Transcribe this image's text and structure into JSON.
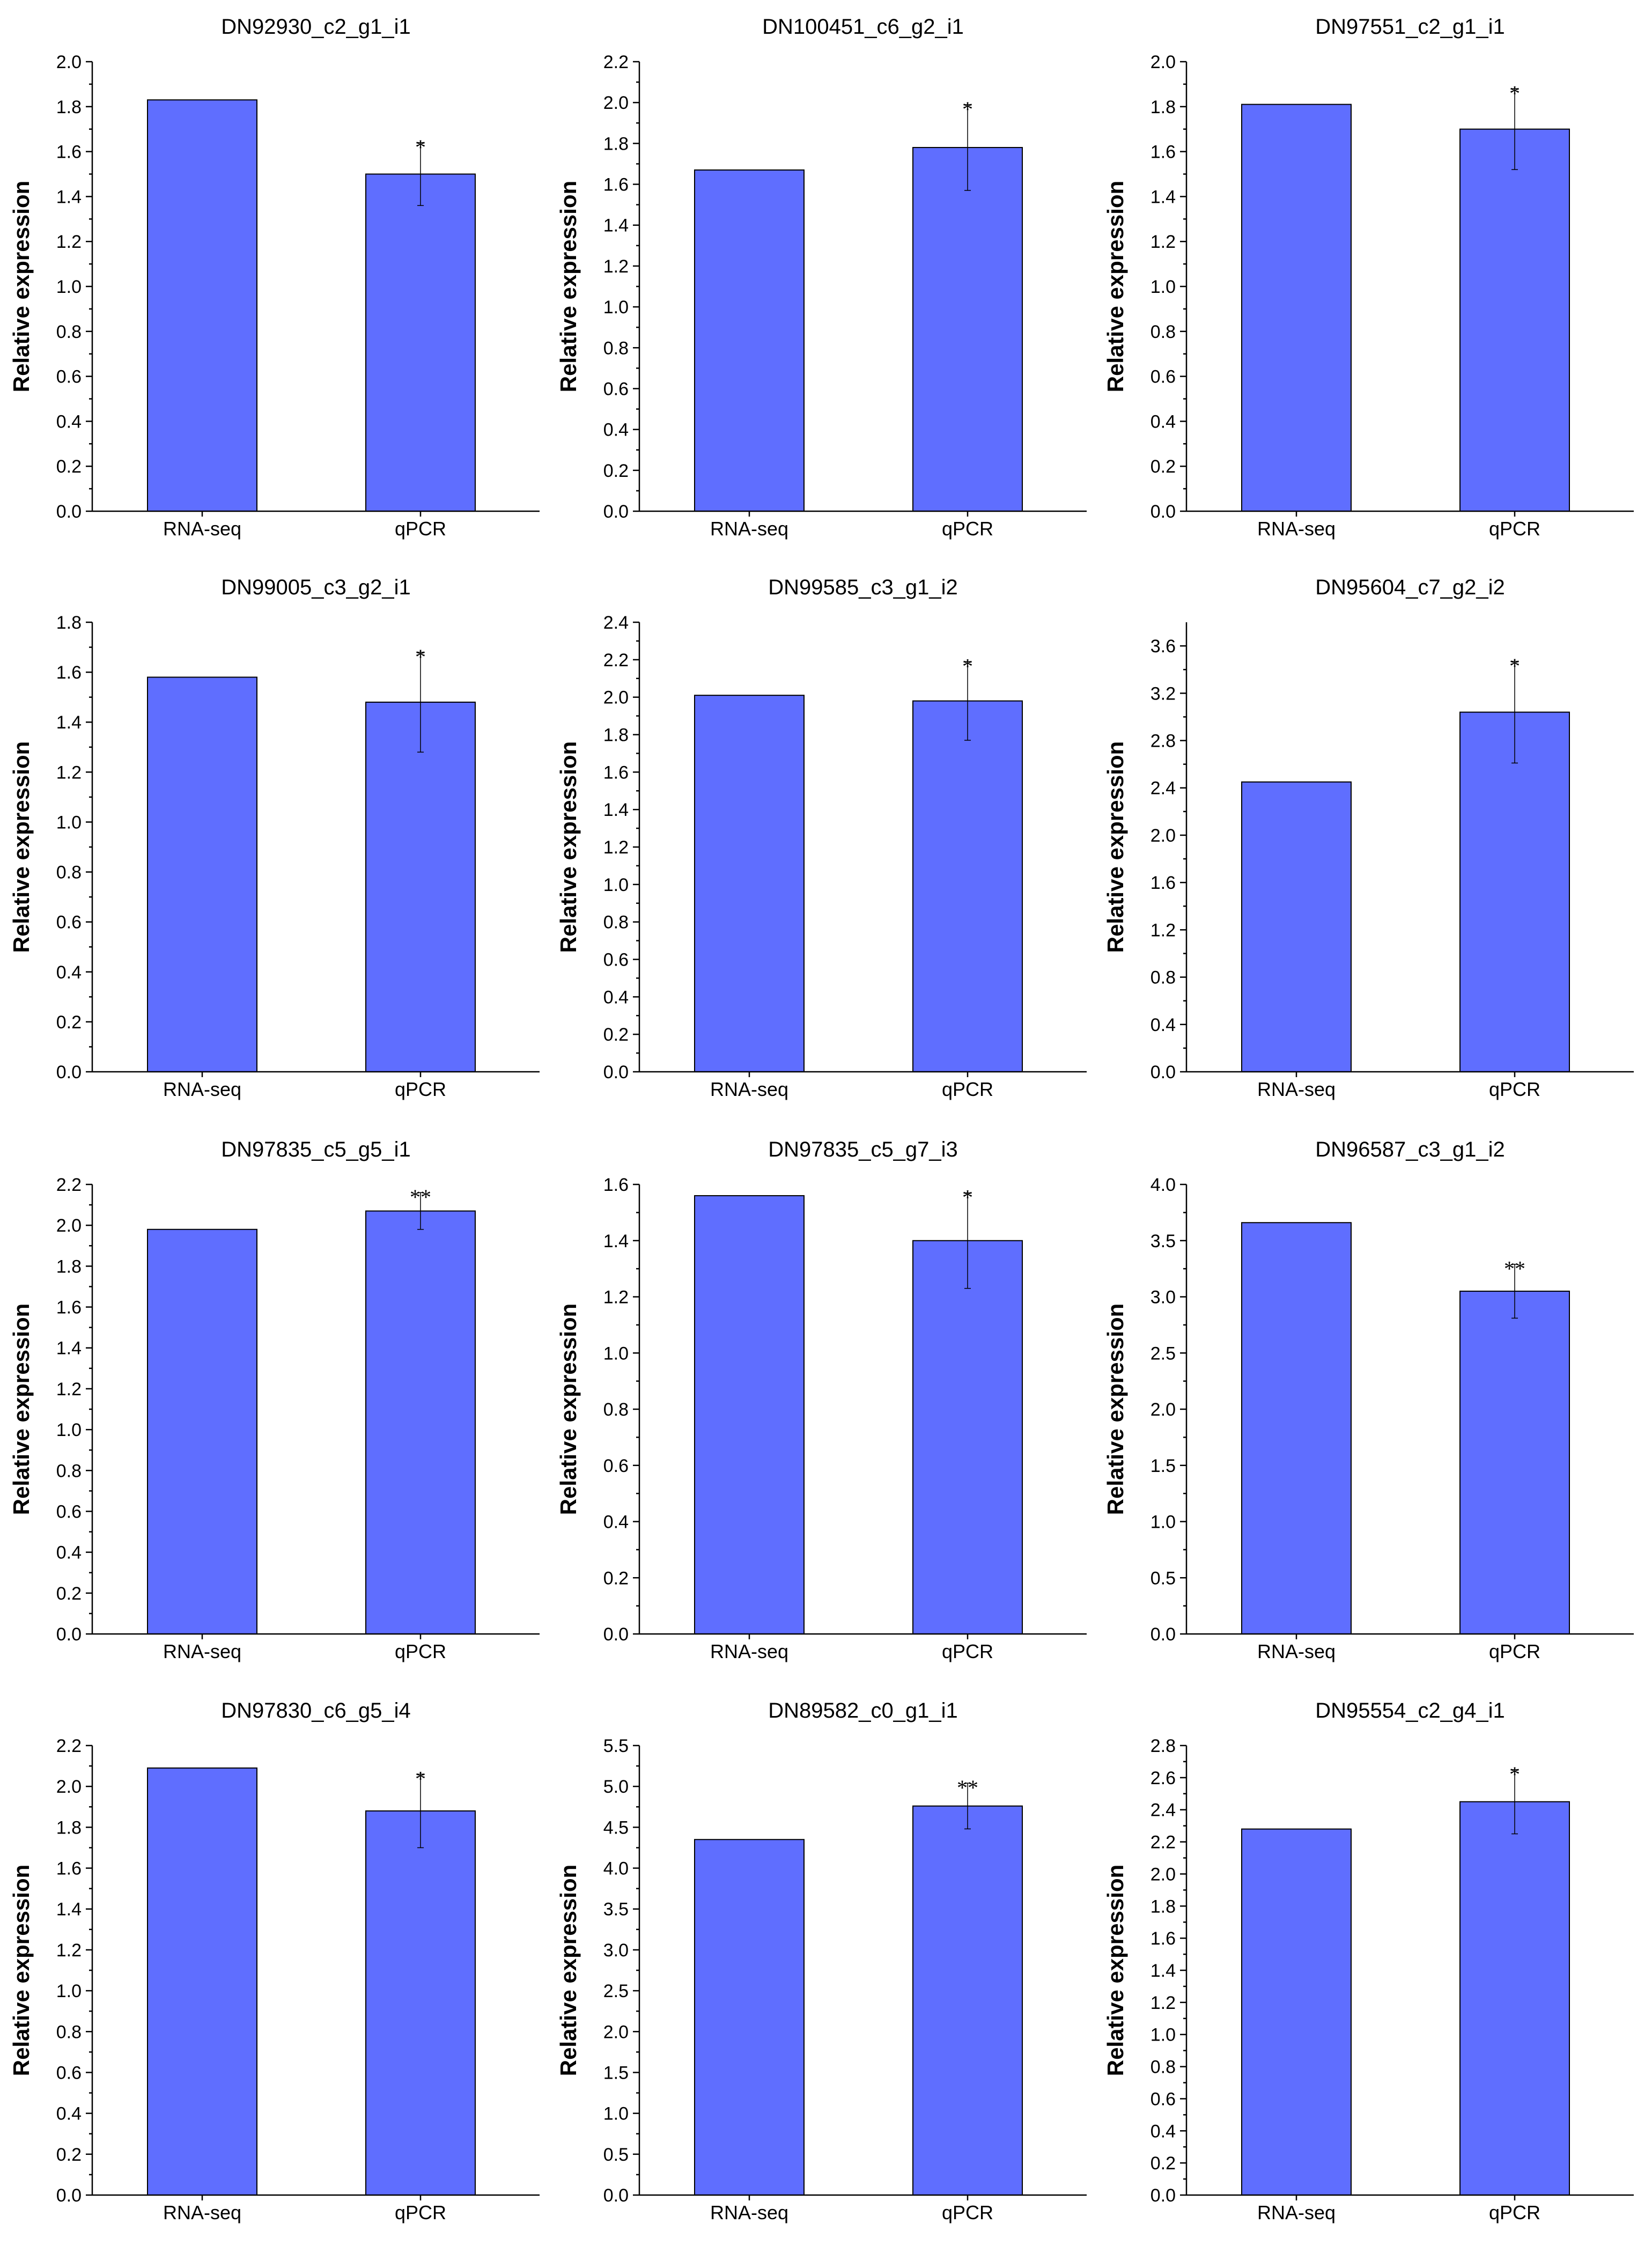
{
  "figure": {
    "y_axis_label": "Relative expression",
    "bar_color": "#5f6eff"
  },
  "chart_data": [
    {
      "type": "bar",
      "title": "DN92930_c2_g1_i1",
      "ylabel": "Relative expression",
      "categories": [
        "RNA-seq",
        "qPCR"
      ],
      "values": [
        1.83,
        1.5
      ],
      "error": [
        null,
        0.14
      ],
      "significance": [
        "",
        "*"
      ],
      "ylim": [
        0,
        2.0
      ],
      "yticks": [
        "0.0",
        "0.2",
        "0.4",
        "0.6",
        "0.8",
        "1.0",
        "1.2",
        "1.4",
        "1.6",
        "1.8",
        "2.0"
      ]
    },
    {
      "type": "bar",
      "title": "DN100451_c6_g2_i1",
      "ylabel": "Relative expression",
      "categories": [
        "RNA-seq",
        "qPCR"
      ],
      "values": [
        1.67,
        1.78
      ],
      "error": [
        null,
        0.21
      ],
      "significance": [
        "",
        "*"
      ],
      "ylim": [
        0,
        2.2
      ],
      "yticks": [
        "0.0",
        "0.2",
        "0.4",
        "0.6",
        "0.8",
        "1.0",
        "1.2",
        "1.4",
        "1.6",
        "1.8",
        "2.0",
        "2.2"
      ]
    },
    {
      "type": "bar",
      "title": "DN97551_c2_g1_i1",
      "ylabel": "Relative expression",
      "categories": [
        "RNA-seq",
        "qPCR"
      ],
      "values": [
        1.81,
        1.7
      ],
      "error": [
        null,
        0.18
      ],
      "significance": [
        "",
        "*"
      ],
      "ylim": [
        0,
        2.0
      ],
      "yticks": [
        "0.0",
        "0.2",
        "0.4",
        "0.6",
        "0.8",
        "1.0",
        "1.2",
        "1.4",
        "1.6",
        "1.8",
        "2.0"
      ]
    },
    {
      "type": "bar",
      "title": "DN99005_c3_g2_i1",
      "ylabel": "Relative expression",
      "categories": [
        "RNA-seq",
        "qPCR"
      ],
      "values": [
        1.58,
        1.48
      ],
      "error": [
        null,
        0.2
      ],
      "significance": [
        "",
        "*"
      ],
      "ylim": [
        0,
        1.8
      ],
      "yticks": [
        "0.0",
        "0.2",
        "0.4",
        "0.6",
        "0.8",
        "1.0",
        "1.2",
        "1.4",
        "1.6",
        "1.8"
      ]
    },
    {
      "type": "bar",
      "title": "DN99585_c3_g1_i2",
      "ylabel": "Relative expression",
      "categories": [
        "RNA-seq",
        "qPCR"
      ],
      "values": [
        2.01,
        1.98
      ],
      "error": [
        null,
        0.21
      ],
      "significance": [
        "",
        "*"
      ],
      "ylim": [
        0,
        2.4
      ],
      "yticks": [
        "0.0",
        "0.2",
        "0.4",
        "0.6",
        "0.8",
        "1.0",
        "1.2",
        "1.4",
        "1.6",
        "1.8",
        "2.0",
        "2.2",
        "2.4"
      ]
    },
    {
      "type": "bar",
      "title": "DN95604_c7_g2_i2",
      "ylabel": "Relative expression",
      "categories": [
        "RNA-seq",
        "qPCR"
      ],
      "values": [
        2.45,
        3.04
      ],
      "error": [
        null,
        0.43
      ],
      "significance": [
        "",
        "*"
      ],
      "ylim": [
        0,
        3.8
      ],
      "yticks": [
        "0.0",
        "0.4",
        "0.8",
        "1.2",
        "1.6",
        "2.0",
        "2.4",
        "2.8",
        "3.2",
        "3.6"
      ]
    },
    {
      "type": "bar",
      "title": "DN97835_c5_g5_i1",
      "ylabel": "Relative expression",
      "categories": [
        "RNA-seq",
        "qPCR"
      ],
      "values": [
        1.98,
        2.07
      ],
      "error": [
        null,
        0.09
      ],
      "significance": [
        "",
        "**"
      ],
      "ylim": [
        0,
        2.2
      ],
      "yticks": [
        "0.0",
        "0.2",
        "0.4",
        "0.6",
        "0.8",
        "1.0",
        "1.2",
        "1.4",
        "1.6",
        "1.8",
        "2.0",
        "2.2"
      ]
    },
    {
      "type": "bar",
      "title": "DN97835_c5_g7_i3",
      "ylabel": "Relative expression",
      "categories": [
        "RNA-seq",
        "qPCR"
      ],
      "values": [
        1.56,
        1.4
      ],
      "error": [
        null,
        0.17
      ],
      "significance": [
        "",
        "*"
      ],
      "ylim": [
        0,
        1.6
      ],
      "yticks": [
        "0.0",
        "0.2",
        "0.4",
        "0.6",
        "0.8",
        "1.0",
        "1.2",
        "1.4",
        "1.6"
      ]
    },
    {
      "type": "bar",
      "title": "DN96587_c3_g1_i2",
      "ylabel": "Relative expression",
      "categories": [
        "RNA-seq",
        "qPCR"
      ],
      "values": [
        3.66,
        3.05
      ],
      "error": [
        null,
        0.24
      ],
      "significance": [
        "",
        "**"
      ],
      "ylim": [
        0,
        4.0
      ],
      "yticks": [
        "0.0",
        "0.5",
        "1.0",
        "1.5",
        "2.0",
        "2.5",
        "3.0",
        "3.5",
        "4.0"
      ]
    },
    {
      "type": "bar",
      "title": "DN97830_c6_g5_i4",
      "ylabel": "Relative expression",
      "categories": [
        "RNA-seq",
        "qPCR"
      ],
      "values": [
        2.09,
        1.88
      ],
      "error": [
        null,
        0.18
      ],
      "significance": [
        "",
        "*"
      ],
      "ylim": [
        0,
        2.2
      ],
      "yticks": [
        "0.0",
        "0.2",
        "0.4",
        "0.6",
        "0.8",
        "1.0",
        "1.2",
        "1.4",
        "1.6",
        "1.8",
        "2.0",
        "2.2"
      ]
    },
    {
      "type": "bar",
      "title": "DN89582_c0_g1_i1",
      "ylabel": "Relative expression",
      "categories": [
        "RNA-seq",
        "qPCR"
      ],
      "values": [
        4.35,
        4.76
      ],
      "error": [
        null,
        0.28
      ],
      "significance": [
        "",
        "**"
      ],
      "ylim": [
        0,
        5.5
      ],
      "yticks": [
        "0.0",
        "0.5",
        "1.0",
        "1.5",
        "2.0",
        "2.5",
        "3.0",
        "3.5",
        "4.0",
        "4.5",
        "5.0",
        "5.5"
      ]
    },
    {
      "type": "bar",
      "title": "DN95554_c2_g4_i1",
      "ylabel": "Relative expression",
      "categories": [
        "RNA-seq",
        "qPCR"
      ],
      "values": [
        2.28,
        2.45
      ],
      "error": [
        null,
        0.2
      ],
      "significance": [
        "",
        "*"
      ],
      "ylim": [
        0,
        2.8
      ],
      "yticks": [
        "0.0",
        "0.2",
        "0.4",
        "0.6",
        "0.8",
        "1.0",
        "1.2",
        "1.4",
        "1.6",
        "1.8",
        "2.0",
        "2.2",
        "2.4",
        "2.6",
        "2.8"
      ]
    }
  ]
}
